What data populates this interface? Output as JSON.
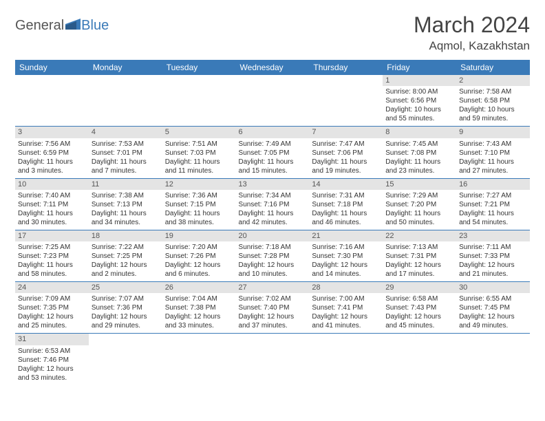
{
  "logo": {
    "text1": "General",
    "text2": "Blue"
  },
  "title": {
    "month": "March 2024",
    "location": "Aqmol, Kazakhstan"
  },
  "colors": {
    "header_bg": "#3a7ab8",
    "header_fg": "#ffffff",
    "daynum_bg": "#e4e4e4",
    "border": "#3a7ab8"
  },
  "weekdays": [
    "Sunday",
    "Monday",
    "Tuesday",
    "Wednesday",
    "Thursday",
    "Friday",
    "Saturday"
  ],
  "weeks": [
    [
      {
        "empty": true
      },
      {
        "empty": true
      },
      {
        "empty": true
      },
      {
        "empty": true
      },
      {
        "empty": true
      },
      {
        "day": "1",
        "sunrise": "Sunrise: 8:00 AM",
        "sunset": "Sunset: 6:56 PM",
        "daylight": "Daylight: 10 hours and 55 minutes."
      },
      {
        "day": "2",
        "sunrise": "Sunrise: 7:58 AM",
        "sunset": "Sunset: 6:58 PM",
        "daylight": "Daylight: 10 hours and 59 minutes."
      }
    ],
    [
      {
        "day": "3",
        "sunrise": "Sunrise: 7:56 AM",
        "sunset": "Sunset: 6:59 PM",
        "daylight": "Daylight: 11 hours and 3 minutes."
      },
      {
        "day": "4",
        "sunrise": "Sunrise: 7:53 AM",
        "sunset": "Sunset: 7:01 PM",
        "daylight": "Daylight: 11 hours and 7 minutes."
      },
      {
        "day": "5",
        "sunrise": "Sunrise: 7:51 AM",
        "sunset": "Sunset: 7:03 PM",
        "daylight": "Daylight: 11 hours and 11 minutes."
      },
      {
        "day": "6",
        "sunrise": "Sunrise: 7:49 AM",
        "sunset": "Sunset: 7:05 PM",
        "daylight": "Daylight: 11 hours and 15 minutes."
      },
      {
        "day": "7",
        "sunrise": "Sunrise: 7:47 AM",
        "sunset": "Sunset: 7:06 PM",
        "daylight": "Daylight: 11 hours and 19 minutes."
      },
      {
        "day": "8",
        "sunrise": "Sunrise: 7:45 AM",
        "sunset": "Sunset: 7:08 PM",
        "daylight": "Daylight: 11 hours and 23 minutes."
      },
      {
        "day": "9",
        "sunrise": "Sunrise: 7:43 AM",
        "sunset": "Sunset: 7:10 PM",
        "daylight": "Daylight: 11 hours and 27 minutes."
      }
    ],
    [
      {
        "day": "10",
        "sunrise": "Sunrise: 7:40 AM",
        "sunset": "Sunset: 7:11 PM",
        "daylight": "Daylight: 11 hours and 30 minutes."
      },
      {
        "day": "11",
        "sunrise": "Sunrise: 7:38 AM",
        "sunset": "Sunset: 7:13 PM",
        "daylight": "Daylight: 11 hours and 34 minutes."
      },
      {
        "day": "12",
        "sunrise": "Sunrise: 7:36 AM",
        "sunset": "Sunset: 7:15 PM",
        "daylight": "Daylight: 11 hours and 38 minutes."
      },
      {
        "day": "13",
        "sunrise": "Sunrise: 7:34 AM",
        "sunset": "Sunset: 7:16 PM",
        "daylight": "Daylight: 11 hours and 42 minutes."
      },
      {
        "day": "14",
        "sunrise": "Sunrise: 7:31 AM",
        "sunset": "Sunset: 7:18 PM",
        "daylight": "Daylight: 11 hours and 46 minutes."
      },
      {
        "day": "15",
        "sunrise": "Sunrise: 7:29 AM",
        "sunset": "Sunset: 7:20 PM",
        "daylight": "Daylight: 11 hours and 50 minutes."
      },
      {
        "day": "16",
        "sunrise": "Sunrise: 7:27 AM",
        "sunset": "Sunset: 7:21 PM",
        "daylight": "Daylight: 11 hours and 54 minutes."
      }
    ],
    [
      {
        "day": "17",
        "sunrise": "Sunrise: 7:25 AM",
        "sunset": "Sunset: 7:23 PM",
        "daylight": "Daylight: 11 hours and 58 minutes."
      },
      {
        "day": "18",
        "sunrise": "Sunrise: 7:22 AM",
        "sunset": "Sunset: 7:25 PM",
        "daylight": "Daylight: 12 hours and 2 minutes."
      },
      {
        "day": "19",
        "sunrise": "Sunrise: 7:20 AM",
        "sunset": "Sunset: 7:26 PM",
        "daylight": "Daylight: 12 hours and 6 minutes."
      },
      {
        "day": "20",
        "sunrise": "Sunrise: 7:18 AM",
        "sunset": "Sunset: 7:28 PM",
        "daylight": "Daylight: 12 hours and 10 minutes."
      },
      {
        "day": "21",
        "sunrise": "Sunrise: 7:16 AM",
        "sunset": "Sunset: 7:30 PM",
        "daylight": "Daylight: 12 hours and 14 minutes."
      },
      {
        "day": "22",
        "sunrise": "Sunrise: 7:13 AM",
        "sunset": "Sunset: 7:31 PM",
        "daylight": "Daylight: 12 hours and 17 minutes."
      },
      {
        "day": "23",
        "sunrise": "Sunrise: 7:11 AM",
        "sunset": "Sunset: 7:33 PM",
        "daylight": "Daylight: 12 hours and 21 minutes."
      }
    ],
    [
      {
        "day": "24",
        "sunrise": "Sunrise: 7:09 AM",
        "sunset": "Sunset: 7:35 PM",
        "daylight": "Daylight: 12 hours and 25 minutes."
      },
      {
        "day": "25",
        "sunrise": "Sunrise: 7:07 AM",
        "sunset": "Sunset: 7:36 PM",
        "daylight": "Daylight: 12 hours and 29 minutes."
      },
      {
        "day": "26",
        "sunrise": "Sunrise: 7:04 AM",
        "sunset": "Sunset: 7:38 PM",
        "daylight": "Daylight: 12 hours and 33 minutes."
      },
      {
        "day": "27",
        "sunrise": "Sunrise: 7:02 AM",
        "sunset": "Sunset: 7:40 PM",
        "daylight": "Daylight: 12 hours and 37 minutes."
      },
      {
        "day": "28",
        "sunrise": "Sunrise: 7:00 AM",
        "sunset": "Sunset: 7:41 PM",
        "daylight": "Daylight: 12 hours and 41 minutes."
      },
      {
        "day": "29",
        "sunrise": "Sunrise: 6:58 AM",
        "sunset": "Sunset: 7:43 PM",
        "daylight": "Daylight: 12 hours and 45 minutes."
      },
      {
        "day": "30",
        "sunrise": "Sunrise: 6:55 AM",
        "sunset": "Sunset: 7:45 PM",
        "daylight": "Daylight: 12 hours and 49 minutes."
      }
    ],
    [
      {
        "day": "31",
        "sunrise": "Sunrise: 6:53 AM",
        "sunset": "Sunset: 7:46 PM",
        "daylight": "Daylight: 12 hours and 53 minutes."
      },
      {
        "empty": true
      },
      {
        "empty": true
      },
      {
        "empty": true
      },
      {
        "empty": true
      },
      {
        "empty": true
      },
      {
        "empty": true
      }
    ]
  ]
}
